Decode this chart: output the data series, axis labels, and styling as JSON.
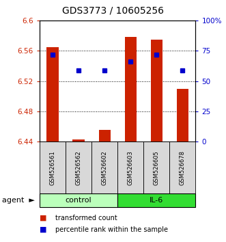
{
  "title": "GDS3773 / 10605256",
  "samples": [
    "GSM526561",
    "GSM526562",
    "GSM526602",
    "GSM526603",
    "GSM526605",
    "GSM526678"
  ],
  "bar_values": [
    6.565,
    6.443,
    6.455,
    6.578,
    6.575,
    6.51
  ],
  "blue_values": [
    6.555,
    6.534,
    6.534,
    6.546,
    6.555,
    6.534
  ],
  "bar_color": "#cc2200",
  "blue_color": "#0000cc",
  "ymin": 6.44,
  "ymax": 6.6,
  "yticks": [
    6.44,
    6.48,
    6.52,
    6.56,
    6.6
  ],
  "ytick_labels": [
    "6.44",
    "6.48",
    "6.52",
    "6.56",
    "6.6"
  ],
  "right_yticks": [
    0,
    25,
    50,
    75,
    100
  ],
  "right_ytick_labels": [
    "0",
    "25",
    "50",
    "75",
    "100%"
  ],
  "groups": [
    {
      "label": "control",
      "indices": [
        0,
        1,
        2
      ],
      "color": "#bbffbb"
    },
    {
      "label": "IL-6",
      "indices": [
        3,
        4,
        5
      ],
      "color": "#33dd33"
    }
  ],
  "legend_items": [
    {
      "label": "transformed count",
      "color": "#cc2200"
    },
    {
      "label": "percentile rank within the sample",
      "color": "#0000cc"
    }
  ],
  "title_fontsize": 10,
  "tick_fontsize": 7.5,
  "sample_fontsize": 6,
  "group_fontsize": 8,
  "legend_fontsize": 7
}
